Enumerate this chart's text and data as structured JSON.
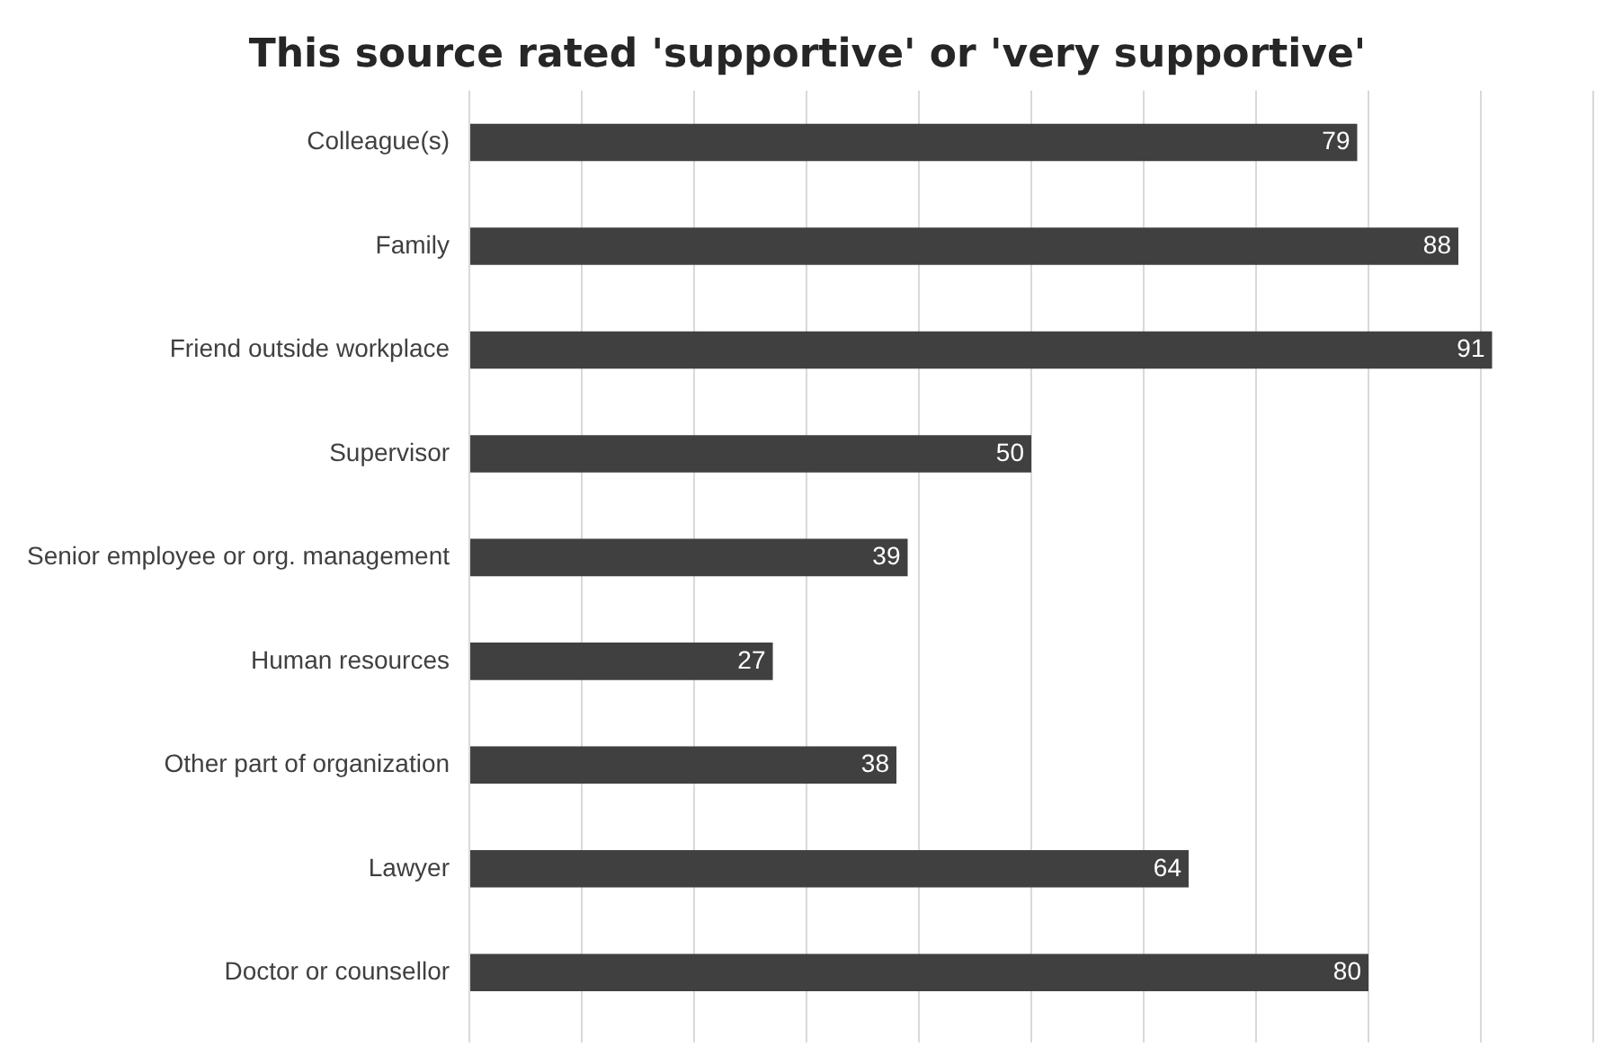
{
  "chart_data": {
    "type": "bar",
    "orientation": "horizontal",
    "title": "This source rated 'supportive' or 'very supportive'",
    "categories": [
      "Colleague(s)",
      "Family",
      "Friend outside workplace",
      "Supervisor",
      "Senior employee or org. management",
      "Human resources",
      "Other part of organization",
      "Lawyer",
      "Doctor or counsellor"
    ],
    "values": [
      79,
      88,
      91,
      50,
      39,
      27,
      38,
      64,
      80
    ],
    "color": "#404040",
    "xlim": [
      0,
      100
    ],
    "xticks": [
      {
        "value": 0,
        "label": null
      },
      {
        "value": 10,
        "label": null
      },
      {
        "value": 20,
        "label": null
      },
      {
        "value": 30,
        "label": null
      },
      {
        "value": 40,
        "label": null
      },
      {
        "value": 50,
        "label": null
      },
      {
        "value": 60,
        "label": null
      },
      {
        "value": 70,
        "label": null
      },
      {
        "value": 80,
        "label": null
      },
      {
        "value": 90,
        "label": null
      },
      {
        "value": 100,
        "label": null
      }
    ],
    "tick_labels": "y",
    "grid": "x",
    "data_labels": true,
    "legend": false
  }
}
